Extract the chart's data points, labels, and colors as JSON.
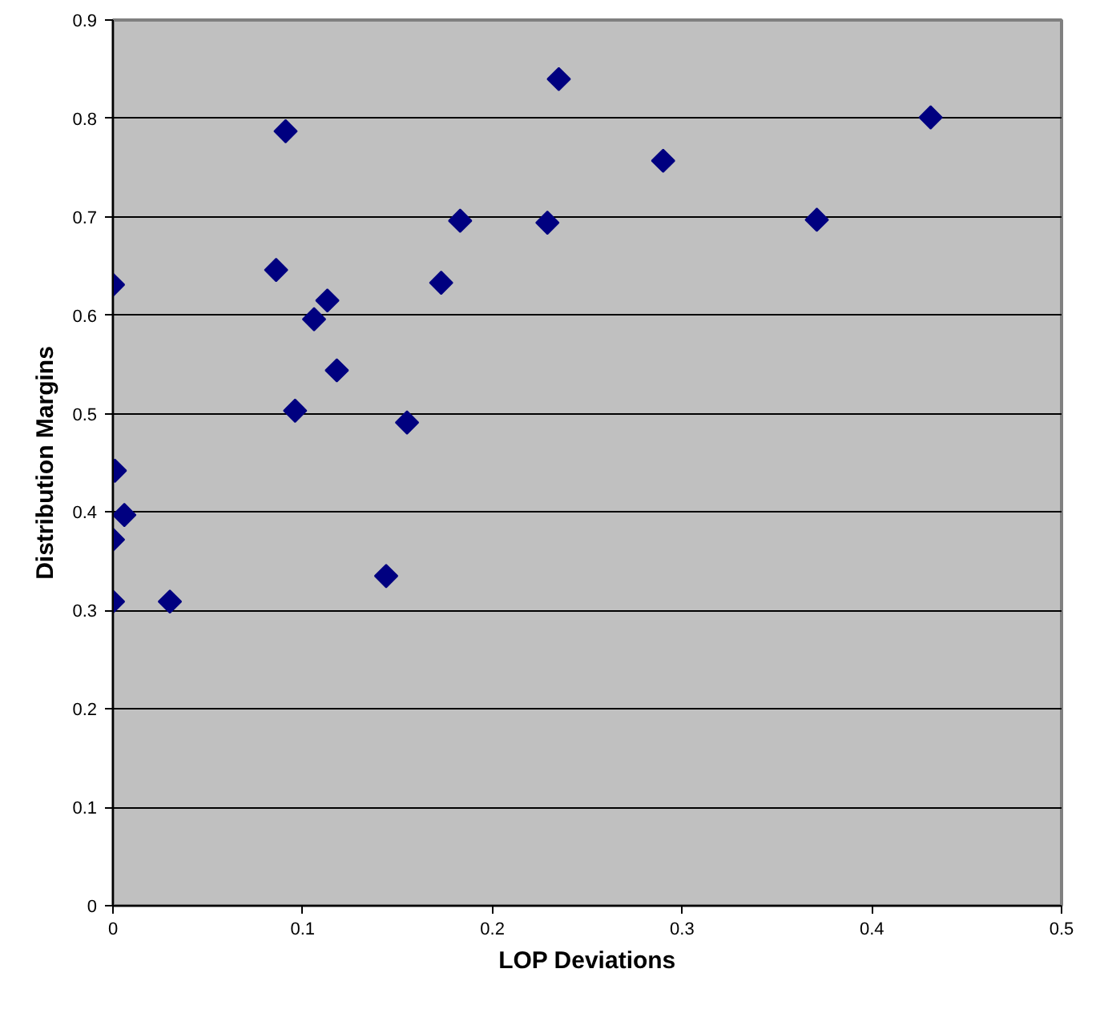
{
  "chart_data": {
    "type": "scatter",
    "xlabel": "LOP Deviations",
    "ylabel": "Distribution Margins",
    "xlim": [
      0,
      0.5
    ],
    "ylim": [
      0,
      0.9
    ],
    "xticks": [
      0,
      0.1,
      0.2,
      0.3,
      0.4,
      0.5
    ],
    "yticks": [
      0,
      0.1,
      0.2,
      0.3,
      0.4,
      0.5,
      0.6,
      0.7,
      0.8,
      0.9
    ],
    "grid": "y",
    "marker": "diamond",
    "series": [
      {
        "color": "#000080",
        "x": [
          0,
          0.086,
          0.091,
          0.106,
          0.113,
          0.118,
          0.096,
          0.155,
          0.173,
          0.183,
          0.229,
          0.235,
          0.29,
          0.371,
          0.431,
          0.001,
          0.006,
          0,
          0,
          0.03,
          0.144
        ],
        "values": [
          0.631,
          0.646,
          0.787,
          0.596,
          0.615,
          0.544,
          0.503,
          0.491,
          0.633,
          0.696,
          0.694,
          0.84,
          0.757,
          0.697,
          0.801,
          0.442,
          0.397,
          0.372,
          0.309,
          0.309,
          0.335
        ]
      }
    ]
  }
}
